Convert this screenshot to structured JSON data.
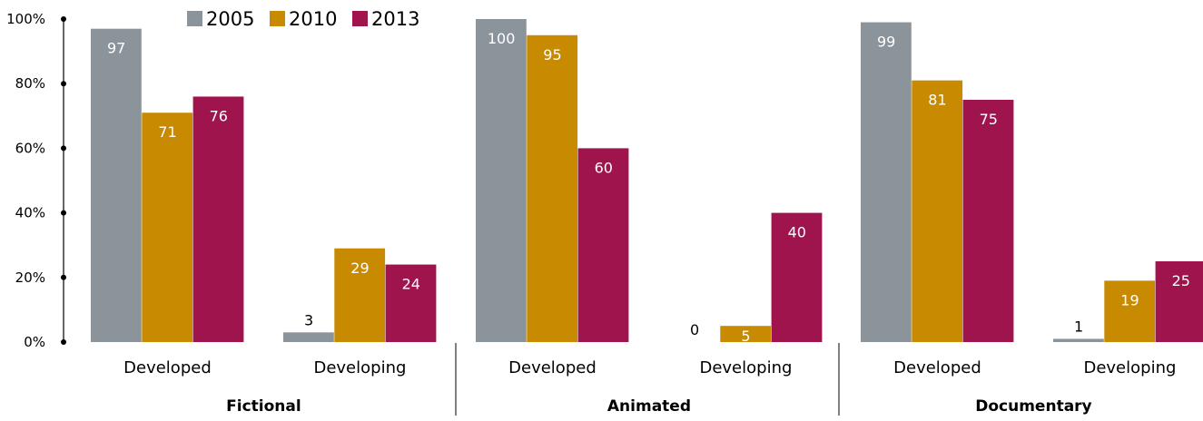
{
  "chart_data": {
    "type": "bar",
    "title": "",
    "xlabel": "",
    "ylabel": "",
    "ylim": [
      0,
      100
    ],
    "y_ticks": [
      "0%",
      "20%",
      "40%",
      "60%",
      "80%",
      "100%"
    ],
    "y_tick_values": [
      0,
      20,
      40,
      60,
      80,
      100
    ],
    "legend_position": "top",
    "groups": [
      {
        "name": "Fictional",
        "categories": [
          "Developed",
          "Developing"
        ]
      },
      {
        "name": "Animated",
        "categories": [
          "Developed",
          "Developing"
        ]
      },
      {
        "name": "Documentary",
        "categories": [
          "Developed",
          "Developing"
        ]
      }
    ],
    "series": [
      {
        "name": "2005",
        "color": "#8c949b",
        "values": [
          97,
          3,
          100,
          0,
          99,
          1
        ]
      },
      {
        "name": "2010",
        "color": "#c88a00",
        "values": [
          71,
          29,
          95,
          5,
          81,
          19
        ]
      },
      {
        "name": "2013",
        "color": "#a0144e",
        "values": [
          76,
          24,
          60,
          40,
          75,
          25
        ]
      }
    ]
  }
}
